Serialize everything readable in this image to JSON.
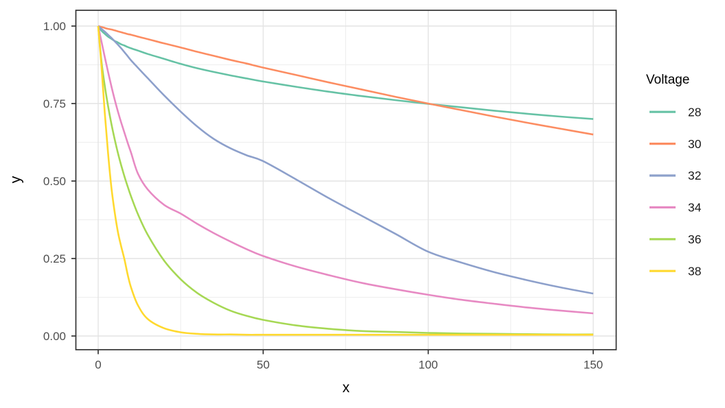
{
  "chart_data": {
    "type": "line",
    "title": "",
    "xlabel": "x",
    "ylabel": "y",
    "legend_title": "Voltage",
    "legend_position": "right",
    "grid": true,
    "xlim": [
      -7.5,
      157.5
    ],
    "ylim": [
      -0.045,
      1.05
    ],
    "x_ticks": [
      {
        "value": 0,
        "label": "0"
      },
      {
        "value": 50,
        "label": "50"
      },
      {
        "value": 100,
        "label": "100"
      },
      {
        "value": 150,
        "label": "150"
      }
    ],
    "y_ticks": [
      {
        "value": 0,
        "label": "0.00"
      },
      {
        "value": 0.25,
        "label": "0.25"
      },
      {
        "value": 0.5,
        "label": "0.50"
      },
      {
        "value": 0.75,
        "label": "0.75"
      },
      {
        "value": 1,
        "label": "1.00"
      }
    ],
    "x_minor": [
      25,
      75,
      125
    ],
    "y_minor": [
      0.125,
      0.375,
      0.625,
      0.875
    ],
    "x": [
      0,
      1,
      2,
      3,
      4,
      5,
      6,
      7,
      8,
      9,
      10,
      12,
      15,
      20,
      25,
      30,
      35,
      40,
      45,
      50,
      60,
      70,
      80,
      90,
      100,
      110,
      120,
      130,
      140,
      150
    ],
    "series": [
      {
        "name": "28",
        "color": "#66C2A5",
        "values": [
          1.0,
          0.985,
          0.975,
          0.966,
          0.959,
          0.952,
          0.947,
          0.941,
          0.937,
          0.932,
          0.928,
          0.921,
          0.91,
          0.894,
          0.878,
          0.864,
          0.852,
          0.841,
          0.831,
          0.821,
          0.804,
          0.788,
          0.774,
          0.761,
          0.749,
          0.738,
          0.727,
          0.717,
          0.708,
          0.7
        ]
      },
      {
        "name": "30",
        "color": "#FC8D62",
        "values": [
          1.0,
          0.997,
          0.994,
          0.991,
          0.989,
          0.986,
          0.983,
          0.98,
          0.977,
          0.974,
          0.972,
          0.966,
          0.958,
          0.944,
          0.931,
          0.917,
          0.904,
          0.891,
          0.879,
          0.866,
          0.842,
          0.818,
          0.795,
          0.772,
          0.75,
          0.729,
          0.708,
          0.688,
          0.669,
          0.65
        ]
      },
      {
        "name": "32",
        "color": "#8DA0CB",
        "values": [
          1.0,
          0.991,
          0.982,
          0.972,
          0.962,
          0.951,
          0.94,
          0.928,
          0.915,
          0.902,
          0.889,
          0.866,
          0.832,
          0.776,
          0.724,
          0.676,
          0.636,
          0.606,
          0.583,
          0.564,
          0.505,
          0.444,
          0.387,
          0.33,
          0.272,
          0.237,
          0.206,
          0.18,
          0.157,
          0.137
        ]
      },
      {
        "name": "34",
        "color": "#E78AC3",
        "values": [
          1.0,
          0.95,
          0.9,
          0.852,
          0.806,
          0.763,
          0.724,
          0.688,
          0.654,
          0.621,
          0.59,
          0.525,
          0.473,
          0.423,
          0.395,
          0.362,
          0.332,
          0.305,
          0.28,
          0.258,
          0.224,
          0.196,
          0.171,
          0.151,
          0.133,
          0.117,
          0.104,
          0.092,
          0.082,
          0.073
        ]
      },
      {
        "name": "36",
        "color": "#A6D854",
        "values": [
          1.0,
          0.886,
          0.807,
          0.742,
          0.685,
          0.635,
          0.59,
          0.55,
          0.513,
          0.48,
          0.449,
          0.394,
          0.327,
          0.243,
          0.183,
          0.139,
          0.107,
          0.082,
          0.065,
          0.052,
          0.034,
          0.023,
          0.016,
          0.013,
          0.01,
          0.008,
          0.007,
          0.006,
          0.005,
          0.005
        ]
      },
      {
        "name": "38",
        "color": "#FFD92F",
        "values": [
          1.0,
          0.87,
          0.72,
          0.59,
          0.48,
          0.4,
          0.335,
          0.288,
          0.245,
          0.195,
          0.155,
          0.1,
          0.055,
          0.025,
          0.012,
          0.007,
          0.005,
          0.005,
          0.004,
          0.004,
          0.004,
          0.004,
          0.004,
          0.004,
          0.004,
          0.004,
          0.004,
          0.004,
          0.004,
          0.004
        ]
      }
    ],
    "style": {
      "panel_border_color": "#333333",
      "major_grid_color": "#E4E4E4",
      "minor_grid_color": "#EDEDED",
      "tick_color": "#333333",
      "tick_label_color": "#4D4D4D",
      "text_color": "#1A1A1A",
      "background": "#FFFFFF"
    }
  }
}
